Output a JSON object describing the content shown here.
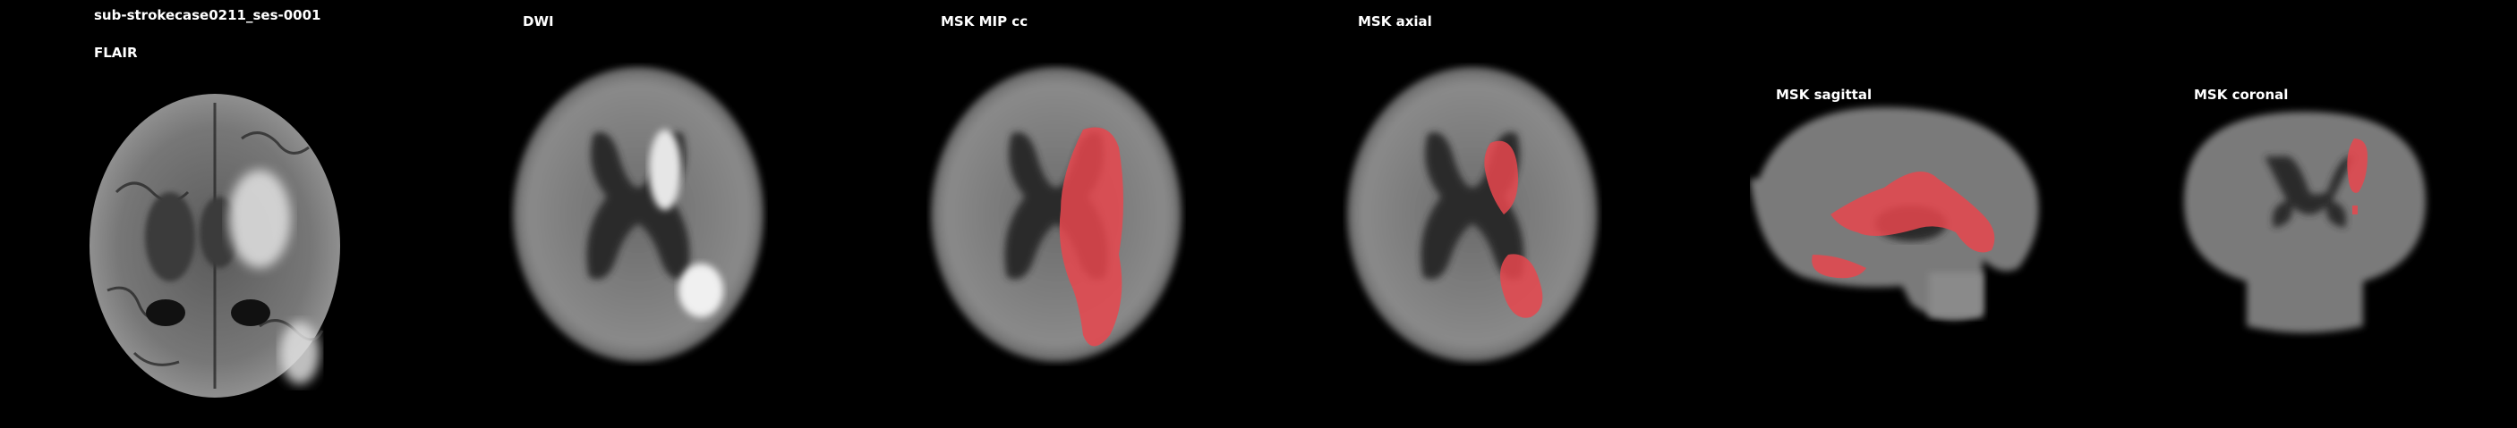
{
  "subject_id": "sub-strokecase0211_ses-0001",
  "panels": [
    {
      "title": "FLAIR"
    },
    {
      "title": "DWI"
    },
    {
      "title": "MSK MIP cc"
    },
    {
      "title": "MSK axial"
    },
    {
      "title": "MSK sagittal"
    },
    {
      "title": "MSK coronal"
    }
  ],
  "colors": {
    "background": "#000000",
    "text": "#ffffff",
    "lesion_mask": "#e8474d"
  }
}
